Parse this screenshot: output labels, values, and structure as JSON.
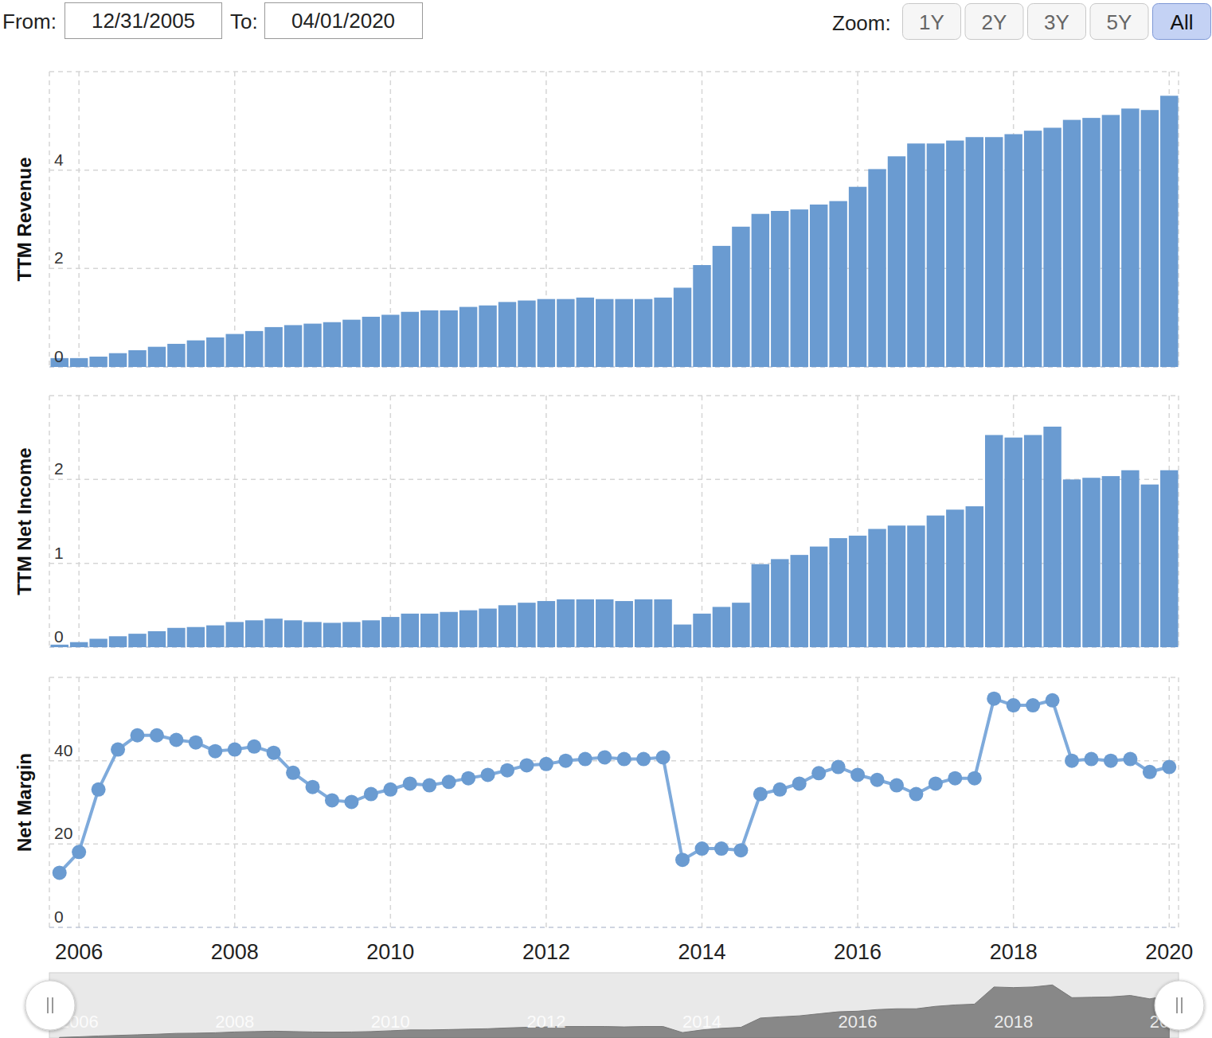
{
  "controls": {
    "from_label": "From:",
    "from_value": "12/31/2005",
    "to_label": "To:",
    "to_value": "04/01/2020",
    "zoom_label": "Zoom:",
    "zoom_options": [
      "1Y",
      "2Y",
      "3Y",
      "5Y",
      "All"
    ],
    "zoom_selected": "All"
  },
  "chart_data": [
    {
      "type": "bar",
      "y_label": "TTM Revenue",
      "color": "#6a9bd1",
      "grid": true,
      "tick_labels": "y",
      "x": [
        2005.75,
        2006,
        2006.25,
        2006.5,
        2006.75,
        2007,
        2007.25,
        2007.5,
        2007.75,
        2008,
        2008.25,
        2008.5,
        2008.75,
        2009,
        2009.25,
        2009.5,
        2009.75,
        2010,
        2010.25,
        2010.5,
        2010.75,
        2011,
        2011.25,
        2011.5,
        2011.75,
        2012,
        2012.25,
        2012.5,
        2012.75,
        2013,
        2013.25,
        2013.5,
        2013.75,
        2014,
        2014.25,
        2014.5,
        2014.75,
        2015,
        2015.25,
        2015.5,
        2015.75,
        2016,
        2016.25,
        2016.5,
        2016.75,
        2017,
        2017.25,
        2017.5,
        2017.75,
        2018,
        2018.25,
        2018.5,
        2018.75,
        2019,
        2019.25,
        2019.5,
        2019.75,
        2020
      ],
      "values": [
        0.18,
        0.18,
        0.21,
        0.28,
        0.34,
        0.41,
        0.47,
        0.54,
        0.6,
        0.67,
        0.73,
        0.81,
        0.85,
        0.88,
        0.91,
        0.96,
        1.02,
        1.06,
        1.12,
        1.15,
        1.15,
        1.22,
        1.25,
        1.32,
        1.35,
        1.38,
        1.38,
        1.41,
        1.38,
        1.38,
        1.38,
        1.41,
        1.61,
        2.07,
        2.46,
        2.85,
        3.11,
        3.17,
        3.2,
        3.3,
        3.37,
        3.66,
        4.02,
        4.28,
        4.54,
        4.54,
        4.6,
        4.67,
        4.67,
        4.73,
        4.8,
        4.86,
        5.02,
        5.06,
        5.12,
        5.25,
        5.22,
        5.51
      ],
      "xlim": [
        2005.62,
        2020.12
      ],
      "xticks": [
        2006,
        2008,
        2010,
        2012,
        2014,
        2016,
        2018,
        2020
      ],
      "ylim": [
        0,
        6
      ],
      "yticks": [
        0,
        2,
        4
      ]
    },
    {
      "type": "bar",
      "y_label": "TTM Net Income",
      "color": "#6a9bd1",
      "grid": true,
      "tick_labels": "y",
      "x": [
        2005.75,
        2006,
        2006.25,
        2006.5,
        2006.75,
        2007,
        2007.25,
        2007.5,
        2007.75,
        2008,
        2008.25,
        2008.5,
        2008.75,
        2009,
        2009.25,
        2009.5,
        2009.75,
        2010,
        2010.25,
        2010.5,
        2010.75,
        2011,
        2011.25,
        2011.5,
        2011.75,
        2012,
        2012.25,
        2012.5,
        2012.75,
        2013,
        2013.25,
        2013.5,
        2013.75,
        2014,
        2014.25,
        2014.5,
        2014.75,
        2015,
        2015.25,
        2015.5,
        2015.75,
        2016,
        2016.25,
        2016.5,
        2016.75,
        2017,
        2017.25,
        2017.5,
        2017.75,
        2018,
        2018.25,
        2018.5,
        2018.75,
        2019,
        2019.25,
        2019.5,
        2019.75,
        2020
      ],
      "values": [
        0.03,
        0.06,
        0.1,
        0.13,
        0.16,
        0.19,
        0.23,
        0.24,
        0.26,
        0.3,
        0.32,
        0.34,
        0.32,
        0.3,
        0.29,
        0.3,
        0.32,
        0.36,
        0.4,
        0.4,
        0.42,
        0.44,
        0.46,
        0.5,
        0.53,
        0.55,
        0.57,
        0.57,
        0.57,
        0.55,
        0.57,
        0.57,
        0.27,
        0.4,
        0.48,
        0.53,
        0.99,
        1.05,
        1.1,
        1.2,
        1.3,
        1.33,
        1.41,
        1.45,
        1.45,
        1.57,
        1.64,
        1.68,
        2.53,
        2.5,
        2.53,
        2.63,
        2.0,
        2.02,
        2.04,
        2.11,
        1.94,
        2.11
      ],
      "xlim": [
        2005.62,
        2020.12
      ],
      "xticks": [
        2006,
        2008,
        2010,
        2012,
        2014,
        2016,
        2018,
        2020
      ],
      "ylim": [
        0,
        3
      ],
      "yticks": [
        0,
        1,
        2
      ]
    },
    {
      "type": "line",
      "y_label": "Net Margin",
      "color": "#6a9bd1",
      "marker": "circle",
      "grid": true,
      "x": [
        2005.75,
        2006,
        2006.25,
        2006.5,
        2006.75,
        2007,
        2007.25,
        2007.5,
        2007.75,
        2008,
        2008.25,
        2008.5,
        2008.75,
        2009,
        2009.25,
        2009.5,
        2009.75,
        2010,
        2010.25,
        2010.5,
        2010.75,
        2011,
        2011.25,
        2011.5,
        2011.75,
        2012,
        2012.25,
        2012.5,
        2012.75,
        2013,
        2013.25,
        2013.5,
        2013.75,
        2014,
        2014.25,
        2014.5,
        2014.75,
        2015,
        2015.25,
        2015.5,
        2015.75,
        2016,
        2016.25,
        2016.5,
        2016.75,
        2017,
        2017.25,
        2017.5,
        2017.75,
        2018,
        2018.25,
        2018.5,
        2018.75,
        2019,
        2019.25,
        2019.5,
        2019.75,
        2020
      ],
      "values": [
        13.1,
        18.1,
        33.1,
        42.7,
        46.1,
        46.1,
        45.0,
        44.4,
        42.3,
        42.7,
        43.4,
        41.9,
        37.1,
        33.7,
        30.5,
        30.1,
        32.0,
        33.1,
        34.5,
        34.1,
        34.9,
        35.8,
        36.6,
        37.7,
        38.9,
        39.2,
        40.0,
        40.4,
        40.8,
        40.4,
        40.4,
        40.8,
        16.2,
        18.9,
        18.9,
        18.5,
        32.0,
        33.1,
        34.5,
        37.0,
        38.5,
        36.6,
        35.4,
        34.1,
        32.0,
        34.5,
        35.8,
        35.8,
        54.9,
        53.3,
        53.3,
        54.5,
        40.0,
        40.4,
        40.0,
        40.4,
        37.3,
        38.5
      ],
      "xlim": [
        2005.62,
        2020.12
      ],
      "xticks": [
        2006,
        2008,
        2010,
        2012,
        2014,
        2016,
        2018,
        2020
      ],
      "ylim": [
        0,
        60
      ],
      "yticks": [
        0,
        20,
        40
      ]
    }
  ]
}
